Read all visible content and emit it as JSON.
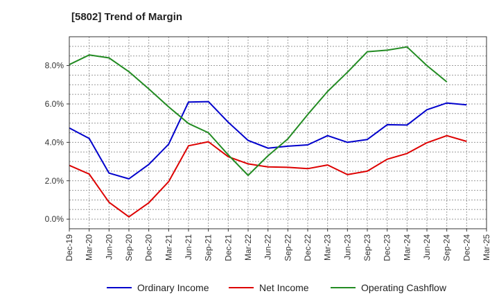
{
  "chart_data": {
    "type": "line",
    "title": "[5802]  Trend of Margin",
    "xlabel": "",
    "ylabel": "",
    "x": [
      "Dec-19",
      "Mar-20",
      "Jun-20",
      "Sep-20",
      "Dec-20",
      "Mar-21",
      "Jun-21",
      "Sep-21",
      "Dec-21",
      "Mar-22",
      "Jun-22",
      "Sep-22",
      "Dec-22",
      "Mar-23",
      "Jun-23",
      "Sep-23",
      "Dec-23",
      "Mar-24",
      "Jun-24",
      "Sep-24",
      "Dec-24",
      "Mar-25"
    ],
    "ylim": [
      -0.5,
      9.5
    ],
    "yticks": [
      0,
      2,
      4,
      6,
      8
    ],
    "ytick_labels": [
      "0.0%",
      "2.0%",
      "4.0%",
      "6.0%",
      "8.0%"
    ],
    "grid": true,
    "legend_position": "bottom",
    "series": [
      {
        "name": "Ordinary Income",
        "color": "#0000cc",
        "values": [
          4.75,
          4.2,
          2.4,
          2.1,
          2.85,
          3.9,
          6.1,
          6.12,
          5.05,
          4.1,
          3.7,
          3.8,
          3.87,
          4.35,
          4.0,
          4.15,
          4.92,
          4.9,
          5.7,
          6.05,
          5.95,
          null
        ]
      },
      {
        "name": "Net Income",
        "color": "#dd0000",
        "values": [
          2.8,
          2.35,
          0.88,
          0.12,
          0.85,
          1.95,
          3.82,
          4.03,
          3.25,
          2.88,
          2.72,
          2.7,
          2.63,
          2.82,
          2.32,
          2.5,
          3.12,
          3.42,
          3.98,
          4.35,
          4.05,
          null
        ]
      },
      {
        "name": "Operating Cashflow",
        "color": "#228b22",
        "values": [
          8.05,
          8.55,
          8.4,
          7.68,
          6.78,
          5.85,
          4.98,
          4.5,
          3.35,
          2.28,
          3.3,
          4.18,
          5.45,
          6.65,
          7.65,
          8.72,
          8.8,
          8.97,
          8.0,
          7.15,
          null,
          null
        ]
      }
    ]
  }
}
